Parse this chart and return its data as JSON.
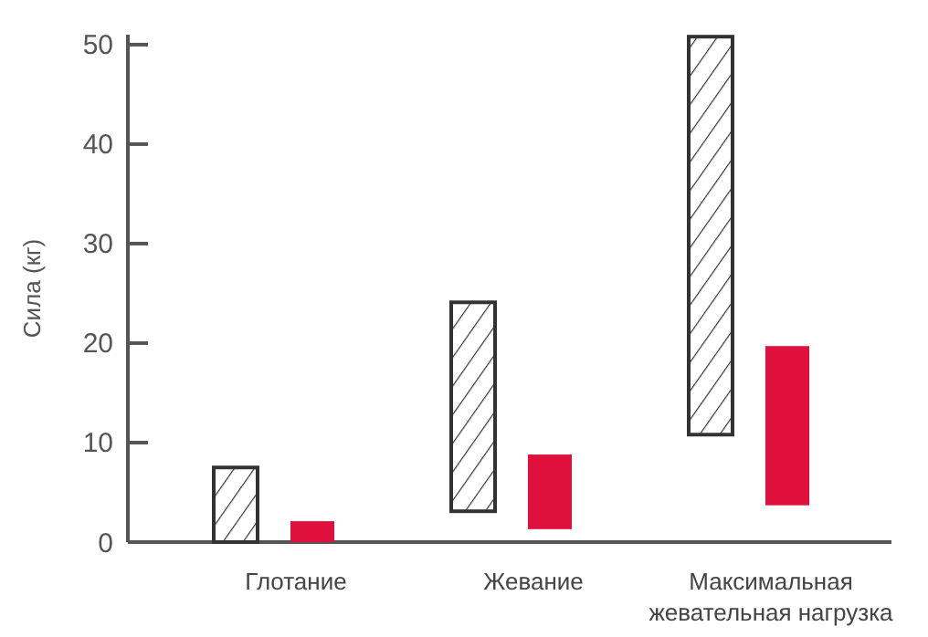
{
  "chart_data": {
    "type": "bar",
    "ylabel": "Сила (кг)",
    "categories": [
      "Глотание",
      "Жевание",
      "Максимальная жевательная нагрузка"
    ],
    "series": [
      {
        "color": "#333333",
        "base": [
          0,
          3.1,
          10.8
        ],
        "values": [
          7.5,
          21.0,
          40.0
        ]
      },
      {
        "color": "#e0103c",
        "base": [
          0,
          1.3,
          3.7
        ],
        "values": [
          2.1,
          7.5,
          16.0
        ]
      }
    ],
    "ylim": [
      0,
      51
    ],
    "yticks": [
      0,
      10,
      20,
      30,
      40,
      50
    ],
    "grid": false
  }
}
